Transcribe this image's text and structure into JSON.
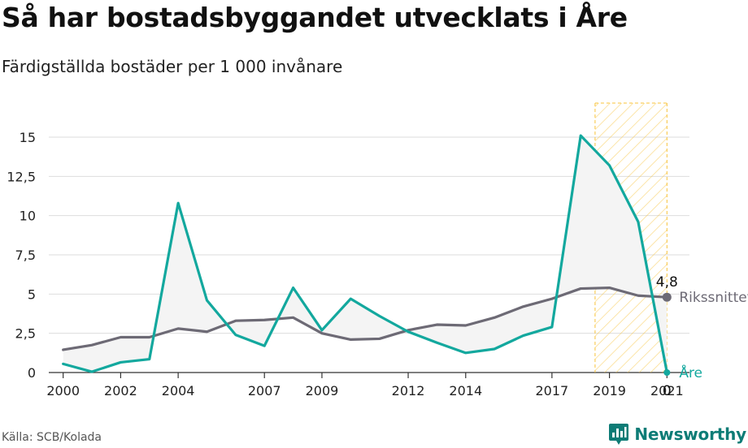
{
  "header": {
    "title": "Så har bostadsbyggandet utvecklats i Åre",
    "subtitle": "Färdigställda bostäder per 1 000 invånare"
  },
  "footer": {
    "source": "Källa: SCB/Kolada",
    "brand": "Newsworthy"
  },
  "icons": {
    "brand_logo": "newsworthy-logo-icon"
  },
  "colors": {
    "are": "#13a89e",
    "riks": "#6d6a75",
    "fill": "#f4f4f4",
    "highlight": "#f8c33a",
    "grid": "#dddddd",
    "brand": "#0d7c76"
  },
  "chart_data": {
    "type": "line",
    "ylim": [
      0,
      16.5
    ],
    "yticks": [
      0,
      2.5,
      5,
      7.5,
      10,
      12.5,
      15
    ],
    "ytick_labels": [
      "0",
      "2,5",
      "5",
      "7,5",
      "10",
      "12,5",
      "15"
    ],
    "xlim": [
      1999.5,
      2021.5
    ],
    "xticks": [
      2000,
      2002,
      2004,
      2007,
      2009,
      2012,
      2014,
      2017,
      2019,
      2021
    ],
    "xtick_labels": [
      "2000",
      "2002",
      "2004",
      "2007",
      "2009",
      "2012",
      "2014",
      "2017",
      "2019",
      "2021"
    ],
    "highlight_range": [
      2018.5,
      2021
    ],
    "grid": true,
    "x": [
      2000,
      2001,
      2002,
      2003,
      2004,
      2005,
      2006,
      2007,
      2008,
      2009,
      2010,
      2011,
      2012,
      2013,
      2014,
      2015,
      2016,
      2017,
      2018,
      2019,
      2020,
      2021
    ],
    "series": [
      {
        "key": "are",
        "name": "Åre",
        "values": [
          0.55,
          0.05,
          0.65,
          0.85,
          10.8,
          4.6,
          2.4,
          1.7,
          5.4,
          2.7,
          4.7,
          3.6,
          2.6,
          1.9,
          1.25,
          1.5,
          2.35,
          2.9,
          15.1,
          13.2,
          9.6,
          0.0
        ]
      },
      {
        "key": "riks",
        "name": "Rikssnittet",
        "values": [
          1.45,
          1.75,
          2.25,
          2.25,
          2.8,
          2.6,
          3.3,
          3.35,
          3.5,
          2.5,
          2.1,
          2.15,
          2.7,
          3.05,
          3.0,
          3.5,
          4.2,
          4.7,
          5.35,
          5.4,
          4.9,
          4.8
        ]
      }
    ],
    "end_labels": {
      "riks_value": "4,8",
      "are_value": "0"
    }
  }
}
